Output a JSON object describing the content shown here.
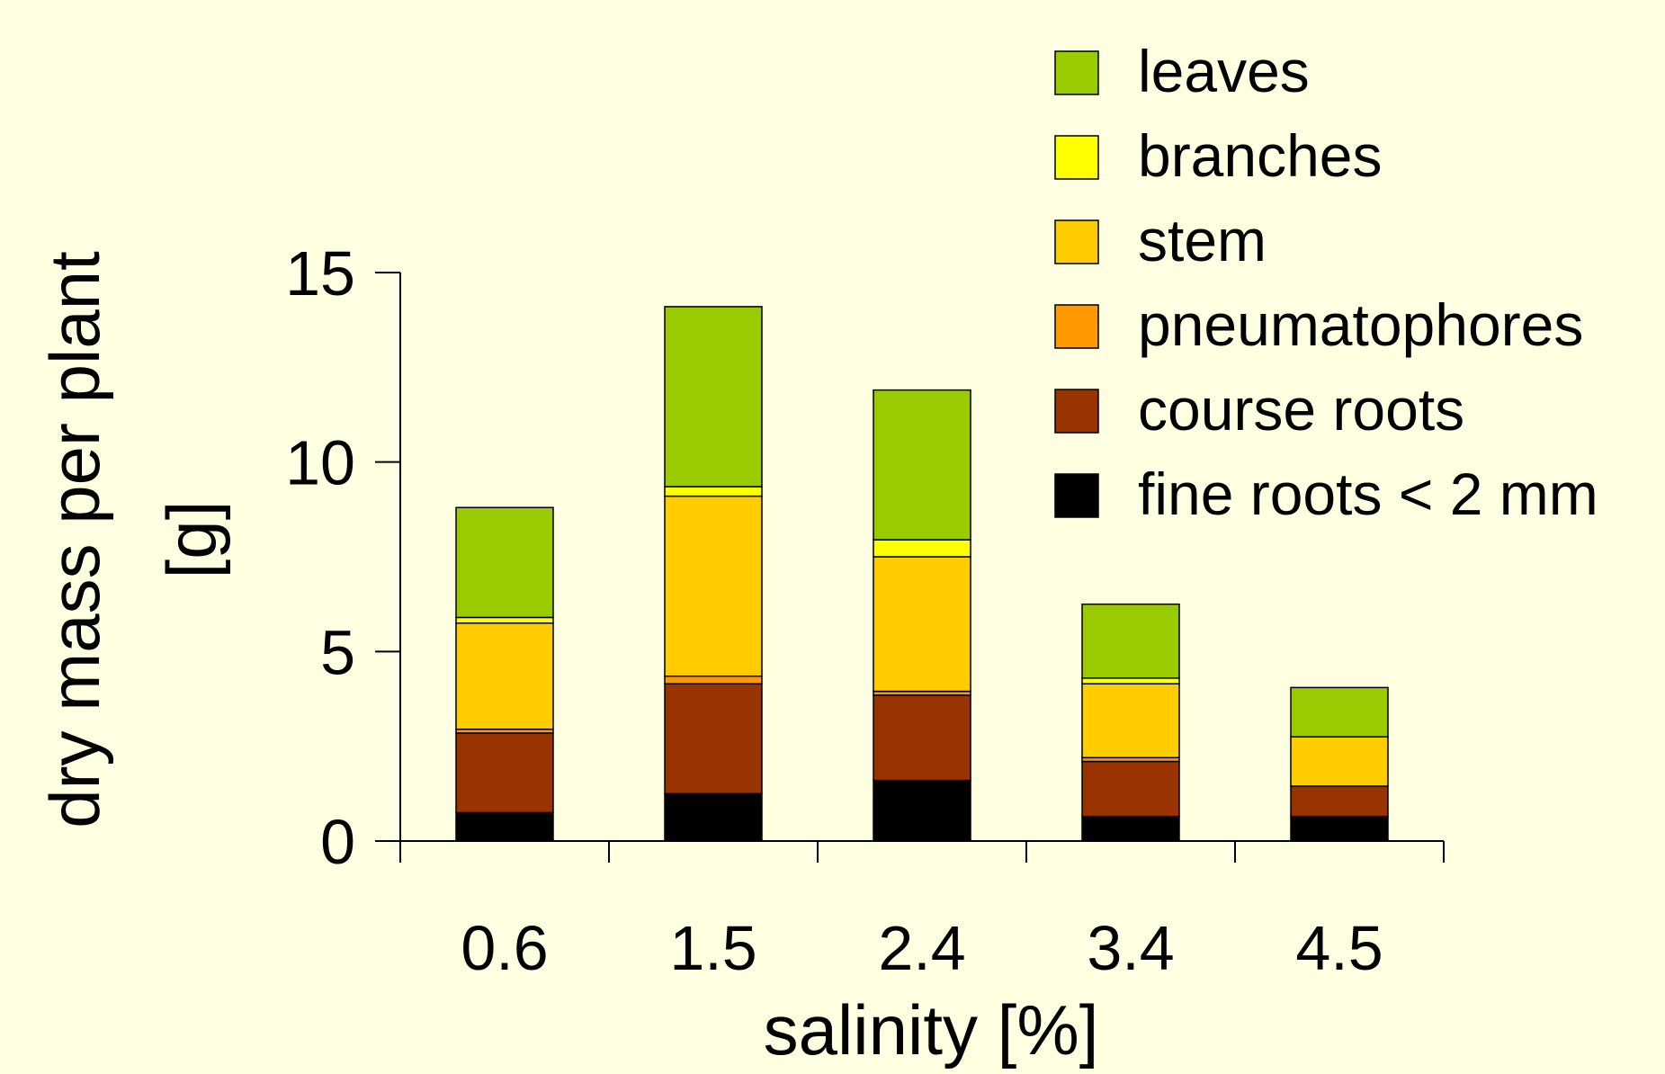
{
  "chart_data": {
    "type": "bar",
    "stacked": true,
    "xlabel": "salinity [%]",
    "ylabel": [
      "dry mass per plant",
      "[g]"
    ],
    "categories": [
      "0.6",
      "1.5",
      "2.4",
      "3.4",
      "4.5"
    ],
    "ylim": [
      0,
      15
    ],
    "yticks": [
      "0",
      "5",
      "10",
      "15"
    ],
    "grid": false,
    "legend_position": "top-right",
    "series": [
      {
        "name": "fine roots < 2 mm",
        "color": "#000000",
        "values": [
          0.75,
          1.25,
          1.6,
          0.65,
          0.65
        ]
      },
      {
        "name": "course roots",
        "color": "#993300",
        "values": [
          2.1,
          2.9,
          2.25,
          1.45,
          0.8
        ]
      },
      {
        "name": "pneumatophores",
        "color": "#ff9900",
        "values": [
          0.1,
          0.2,
          0.1,
          0.1,
          0.0
        ]
      },
      {
        "name": "stem",
        "color": "#ffcc00",
        "values": [
          2.8,
          4.75,
          3.55,
          1.95,
          1.3
        ]
      },
      {
        "name": "branches",
        "color": "#ffff00",
        "values": [
          0.15,
          0.25,
          0.45,
          0.15,
          0.0
        ]
      },
      {
        "name": "leaves",
        "color": "#99cc00",
        "values": [
          2.9,
          4.75,
          3.95,
          1.95,
          1.3
        ]
      }
    ],
    "legend_order": [
      "leaves",
      "branches",
      "stem",
      "pneumatophores",
      "course roots",
      "fine roots < 2 mm"
    ]
  },
  "colors": {
    "background": "#ffffe1",
    "axis": "#000000"
  }
}
